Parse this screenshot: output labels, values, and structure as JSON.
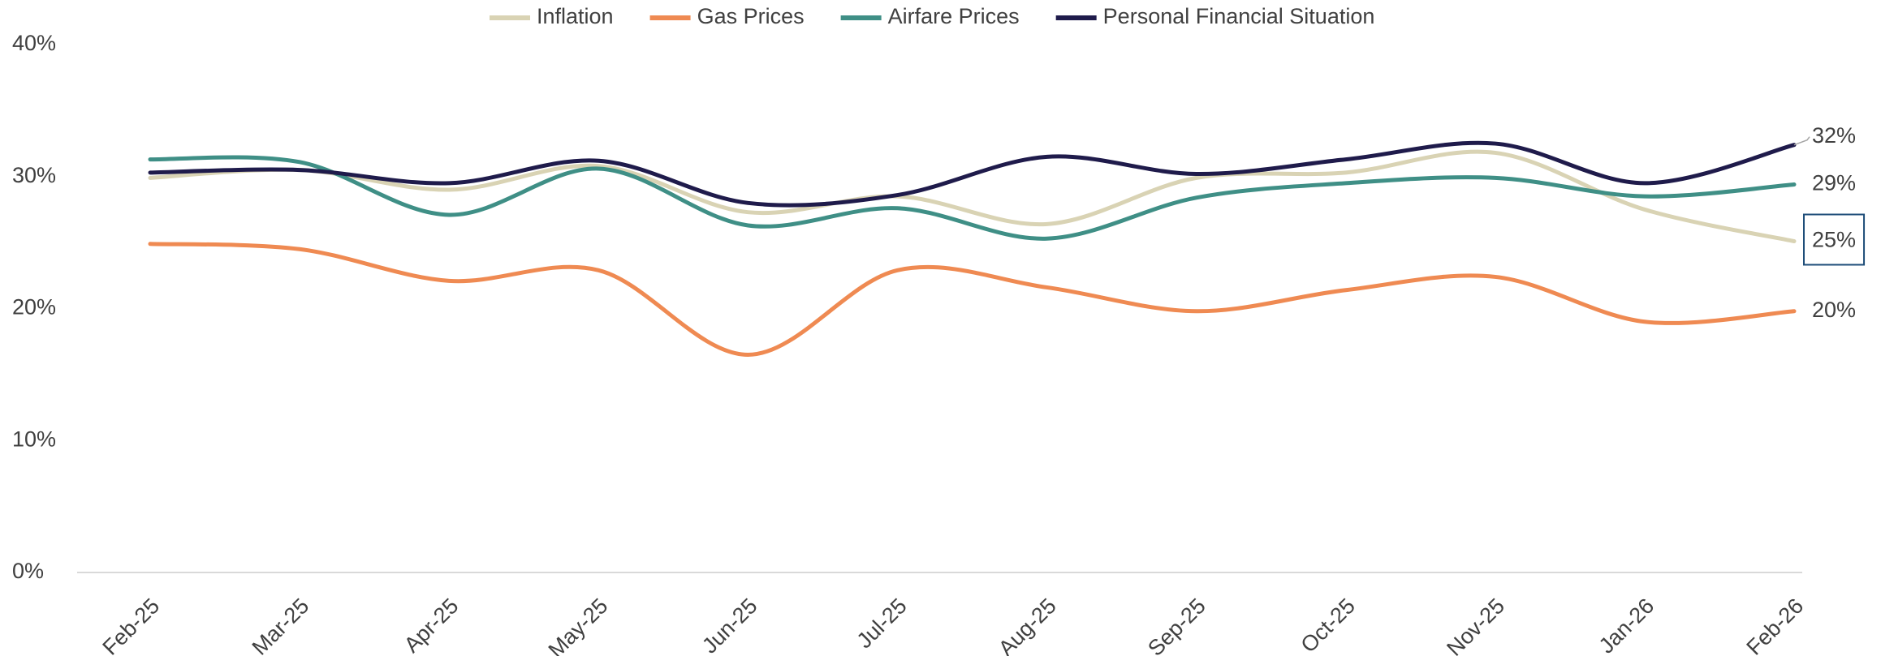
{
  "chart_data": {
    "type": "line",
    "categories": [
      "Feb-25",
      "Mar-25",
      "Apr-25",
      "May-25",
      "Jun-25",
      "Jul-25",
      "Aug-25",
      "Sep-25",
      "Oct-25",
      "Nov-25",
      "Jan-26",
      "Feb-26"
    ],
    "series": [
      {
        "name": "Inflation",
        "color": "#d9d3b4",
        "values": [
          29.9,
          30.5,
          29.0,
          30.8,
          27.3,
          28.5,
          26.4,
          29.9,
          30.3,
          31.8,
          27.5,
          25.1
        ],
        "value_labels": [
          null,
          null,
          null,
          null,
          null,
          null,
          null,
          null,
          null,
          null,
          null,
          "25%"
        ]
      },
      {
        "name": "Gas Prices",
        "color": "#ef8a52",
        "values": [
          24.9,
          24.5,
          22.1,
          22.9,
          16.5,
          22.9,
          21.6,
          19.8,
          21.4,
          22.4,
          19.0,
          19.8
        ],
        "value_labels": [
          null,
          null,
          null,
          null,
          null,
          null,
          null,
          null,
          null,
          null,
          null,
          "20%"
        ]
      },
      {
        "name": "Airfare Prices",
        "color": "#3f8f86",
        "values": [
          31.3,
          31.1,
          27.1,
          30.6,
          26.3,
          27.6,
          25.3,
          28.4,
          29.5,
          29.9,
          28.5,
          29.4
        ],
        "value_labels": [
          null,
          null,
          null,
          null,
          null,
          null,
          null,
          null,
          null,
          null,
          null,
          "29%"
        ]
      },
      {
        "name": "Personal Financial Situation",
        "color": "#1f1b4b",
        "values": [
          30.3,
          30.5,
          29.5,
          31.2,
          28.0,
          28.6,
          31.5,
          30.2,
          31.3,
          32.5,
          29.5,
          32.4
        ],
        "value_labels": [
          null,
          null,
          null,
          null,
          null,
          null,
          null,
          null,
          null,
          null,
          null,
          "32%"
        ]
      }
    ],
    "ylim": [
      0,
      40
    ],
    "yticks": [
      {
        "value": 0,
        "label": "0%"
      },
      {
        "value": 10,
        "label": "10%"
      },
      {
        "value": 20,
        "label": "20%"
      },
      {
        "value": 30,
        "label": "30%"
      },
      {
        "value": 40,
        "label": "40%"
      }
    ],
    "grid": false,
    "legend": "top"
  }
}
